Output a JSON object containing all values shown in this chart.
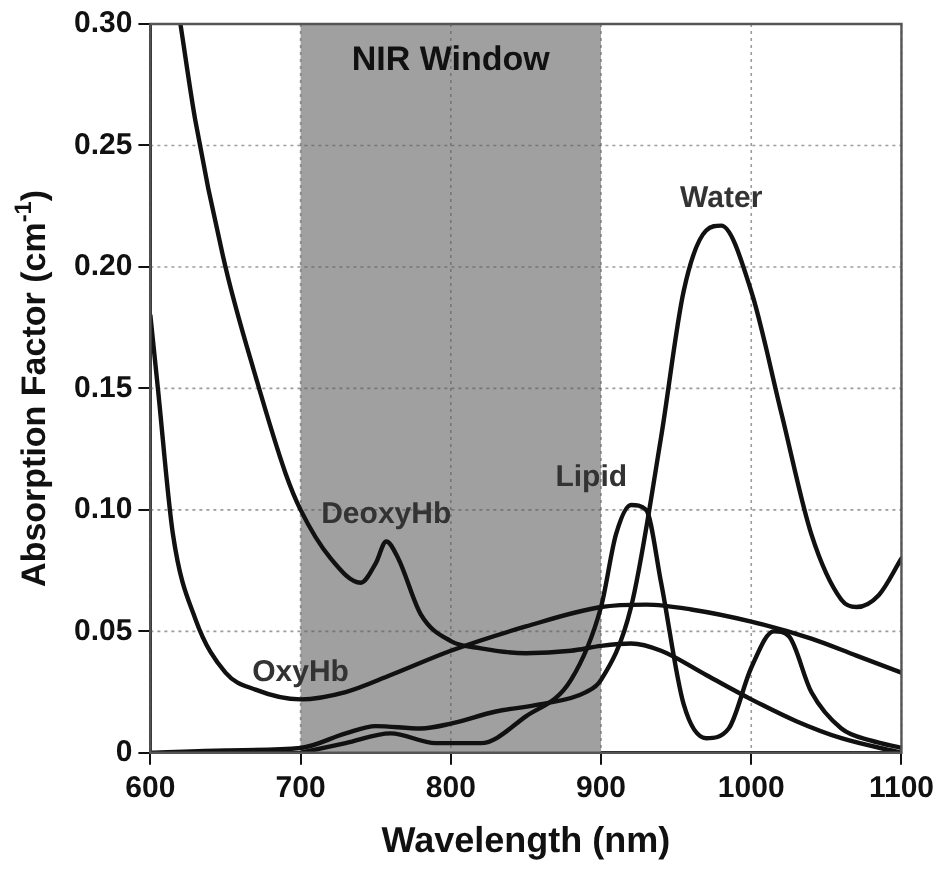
{
  "chart_data": {
    "type": "line",
    "xlabel": "Wavelength (nm)",
    "ylabel": "Absorption Factor (cm$^{-1}$)",
    "xlim": [
      600,
      1100
    ],
    "xticks": [
      600,
      700,
      800,
      900,
      1000,
      1100
    ],
    "ylim": [
      0,
      0.3
    ],
    "yticks": [
      0,
      {
        "value": 0.05,
        "label": "0.05"
      },
      {
        "value": 0.1,
        "label": "0.10"
      },
      {
        "value": 0.15,
        "label": "0.15"
      },
      {
        "value": 0.2,
        "label": "0.20"
      },
      {
        "value": 0.25,
        "label": "0.25"
      },
      {
        "value": 0.3,
        "label": "0.30"
      }
    ],
    "grid": true,
    "legend": false,
    "marker": "none",
    "line_style": "solid",
    "bands": [
      {
        "axis": "x",
        "from": 700,
        "to": 900,
        "label": "NIR Window",
        "color": "#a0a0a0"
      }
    ],
    "series": [
      {
        "name": "DeoxyHb",
        "color": "#111111",
        "x": [
          620,
          630,
          650,
          670,
          690,
          700,
          720,
          740,
          750,
          757,
          765,
          780,
          800,
          820,
          850,
          880,
          900,
          920,
          940,
          970,
          1000,
          1030,
          1060,
          1100
        ],
        "values": [
          0.3,
          0.26,
          0.2,
          0.155,
          0.115,
          0.1,
          0.08,
          0.07,
          0.078,
          0.087,
          0.08,
          0.057,
          0.046,
          0.043,
          0.041,
          0.042,
          0.044,
          0.045,
          0.042,
          0.032,
          0.022,
          0.013,
          0.006,
          0
        ]
      },
      {
        "name": "OxyHb",
        "color": "#111111",
        "x": [
          600,
          605,
          615,
          630,
          650,
          670,
          700,
          730,
          760,
          800,
          850,
          900,
          930,
          960,
          1000,
          1040,
          1070,
          1100
        ],
        "values": [
          0.18,
          0.15,
          0.09,
          0.055,
          0.033,
          0.026,
          0.022,
          0.025,
          0.032,
          0.042,
          0.052,
          0.06,
          0.061,
          0.059,
          0.054,
          0.047,
          0.04,
          0.033
        ]
      },
      {
        "name": "Water",
        "color": "#111111",
        "x": [
          600,
          650,
          700,
          730,
          750,
          780,
          800,
          830,
          860,
          890,
          900,
          920,
          940,
          955,
          970,
          980,
          1000,
          1020,
          1040,
          1060,
          1070,
          1085,
          1100
        ],
        "values": [
          0,
          0.001,
          0.002,
          0.008,
          0.011,
          0.01,
          0.012,
          0.017,
          0.02,
          0.025,
          0.03,
          0.06,
          0.13,
          0.19,
          0.215,
          0.217,
          0.19,
          0.14,
          0.09,
          0.063,
          0.06,
          0.065,
          0.08
        ]
      },
      {
        "name": "Lipid",
        "color": "#111111",
        "x": [
          700,
          730,
          760,
          790,
          820,
          850,
          880,
          900,
          910,
          920,
          930,
          940,
          955,
          970,
          985,
          1000,
          1015,
          1025,
          1040,
          1060,
          1080,
          1100
        ],
        "values": [
          0,
          0.004,
          0.008,
          0.004,
          0.004,
          0.015,
          0.03,
          0.06,
          0.09,
          0.102,
          0.1,
          0.07,
          0.02,
          0.006,
          0.01,
          0.035,
          0.05,
          0.048,
          0.025,
          0.01,
          0.005,
          0.002
        ]
      }
    ]
  }
}
